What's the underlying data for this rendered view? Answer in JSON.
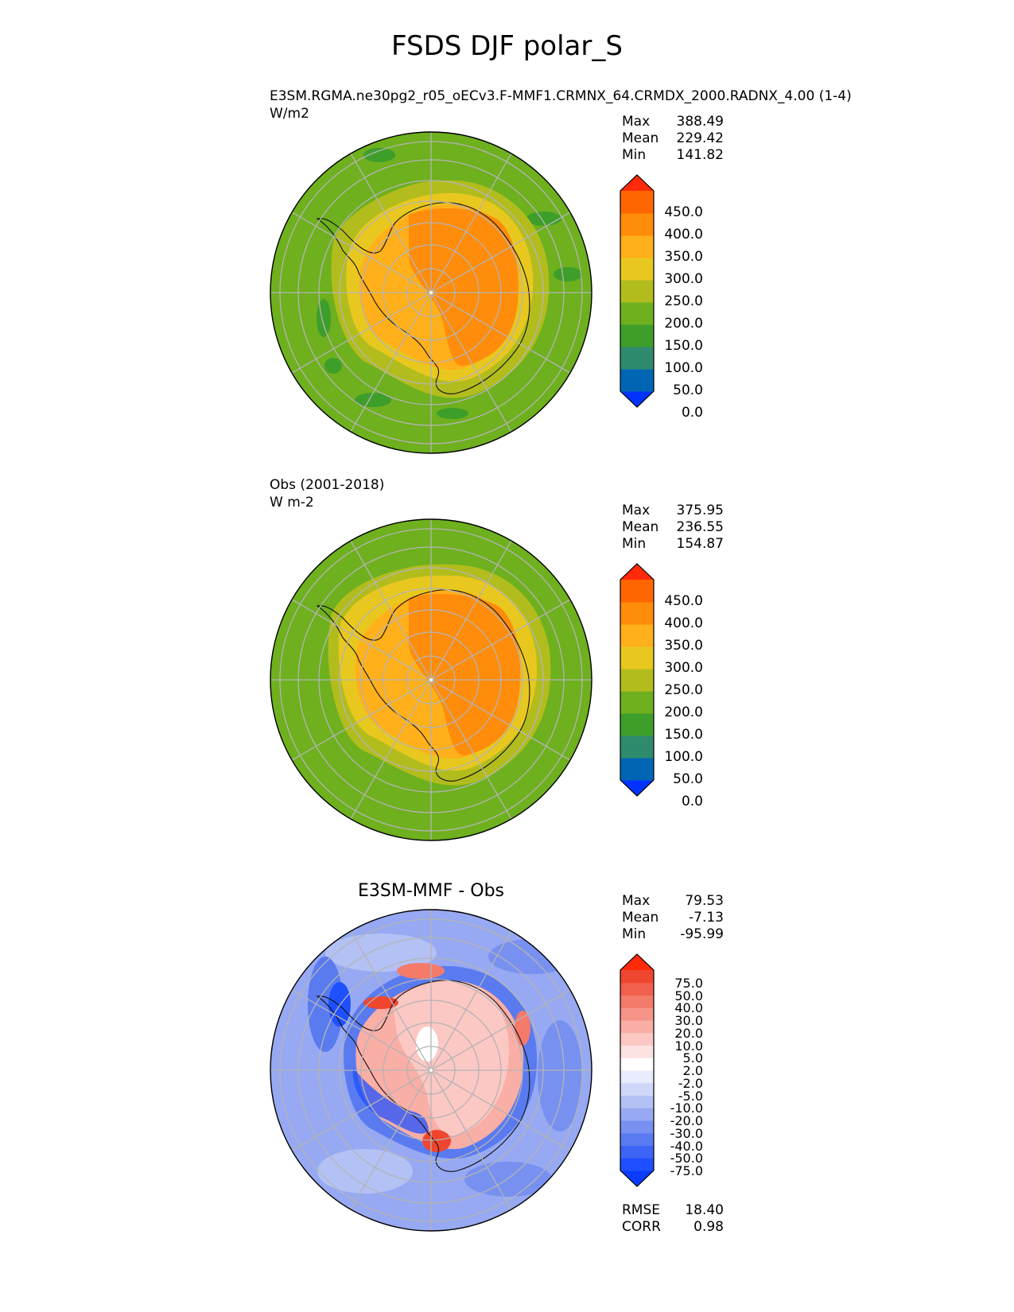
{
  "title": "FSDS DJF polar_S",
  "panels": [
    {
      "id": "model",
      "label_line1": "E3SM.RGMA.ne30pg2_r05_oECv3.F-MMF1.CRMNX_64.CRMDX_2000.RADNX_4.00 (1-4)",
      "label_line2": "W/m2",
      "stats": {
        "max_label": "Max",
        "max": "388.49",
        "mean_label": "Mean",
        "mean": "229.42",
        "min_label": "Min",
        "min": "141.82"
      },
      "colorbar": {
        "levels": [
          "450.0",
          "400.0",
          "350.0",
          "300.0",
          "250.0",
          "200.0",
          "150.0",
          "100.0",
          "50.0",
          "0.0"
        ],
        "colors": [
          "#0033ff",
          "#0066b3",
          "#2e8b6e",
          "#3e9e2a",
          "#6eb01e",
          "#b2bd1d",
          "#e8c81f",
          "#ffb01a",
          "#ff8c0a",
          "#ff6600",
          "#ff2a0a"
        ]
      }
    },
    {
      "id": "obs",
      "label_line1": "Obs (2001-2018)",
      "label_line2": "W m-2",
      "stats": {
        "max_label": "Max",
        "max": "375.95",
        "mean_label": "Mean",
        "mean": "236.55",
        "min_label": "Min",
        "min": "154.87"
      },
      "colorbar": {
        "levels": [
          "450.0",
          "400.0",
          "350.0",
          "300.0",
          "250.0",
          "200.0",
          "150.0",
          "100.0",
          "50.0",
          "0.0"
        ],
        "colors": [
          "#0033ff",
          "#0066b3",
          "#2e8b6e",
          "#3e9e2a",
          "#6eb01e",
          "#b2bd1d",
          "#e8c81f",
          "#ffb01a",
          "#ff8c0a",
          "#ff6600",
          "#ff2a0a"
        ]
      }
    },
    {
      "id": "diff",
      "title": "E3SM-MMF - Obs",
      "stats": {
        "max_label": "Max",
        "max": "79.53",
        "mean_label": "Mean",
        "mean": "-7.13",
        "min_label": "Min",
        "min": "-95.99"
      },
      "colorbar": {
        "levels": [
          "75.0",
          "50.0",
          "40.0",
          "30.0",
          "20.0",
          "10.0",
          "5.0",
          "2.0",
          "-2.0",
          "-5.0",
          "-10.0",
          "-20.0",
          "-30.0",
          "-40.0",
          "-50.0",
          "-75.0"
        ],
        "colors": [
          "#0a3cff",
          "#1f50ff",
          "#3c64f5",
          "#5a7bf0",
          "#7891f0",
          "#97a9f2",
          "#b4c1f5",
          "#d0d8fa",
          "#e8ecfd",
          "#ffffff",
          "#fde2e2",
          "#fcc8c4",
          "#f9aea6",
          "#f69488",
          "#f47a6a",
          "#f1604c",
          "#ef4630",
          "#ff2a0a"
        ]
      },
      "bottom_stats": {
        "rmse_label": "RMSE",
        "rmse": "18.40",
        "corr_label": "CORR",
        "corr": "0.98"
      }
    }
  ]
}
